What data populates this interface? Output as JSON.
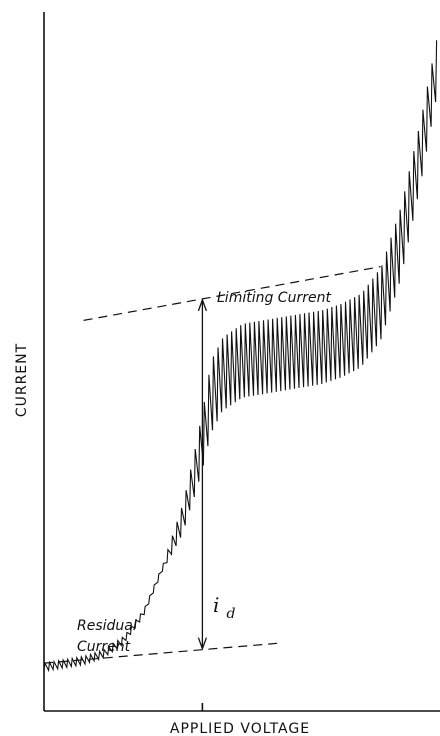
{
  "chart_data": {
    "type": "line",
    "title": "",
    "xlabel": "APPLIED VOLTAGE",
    "ylabel": "CURRENT",
    "x_ticks": [],
    "y_ticks": [],
    "annotations": {
      "limiting_current": "Limiting Current",
      "residual_current_line1": "Residual",
      "residual_current_line2": "Current",
      "diffusion_current_symbol": "i",
      "diffusion_current_subscript": "d"
    },
    "series": [
      {
        "style": "sawtooth",
        "x": [
          0.0,
          0.05,
          0.1,
          0.15,
          0.2,
          0.25,
          0.3,
          0.35,
          0.38,
          0.4,
          0.42,
          0.45,
          0.5,
          0.55,
          0.6,
          0.65,
          0.7,
          0.75,
          0.8,
          0.85,
          0.9,
          0.95,
          1.0
        ],
        "y": [
          0.04,
          0.045,
          0.05,
          0.06,
          0.08,
          0.12,
          0.19,
          0.28,
          0.36,
          0.42,
          0.49,
          0.525,
          0.545,
          0.55,
          0.555,
          0.56,
          0.565,
          0.575,
          0.59,
          0.63,
          0.72,
          0.85,
          1.0
        ]
      }
    ],
    "reference_lines": [
      {
        "name": "residual current extrapolation",
        "x": [
          0.0,
          0.6
        ],
        "y": [
          0.04,
          0.07
        ]
      },
      {
        "name": "limiting current extrapolation",
        "x": [
          0.1,
          0.85
        ],
        "y": [
          0.55,
          0.63
        ]
      }
    ],
    "marker_x": 0.4,
    "grid": false,
    "legend": "none"
  }
}
